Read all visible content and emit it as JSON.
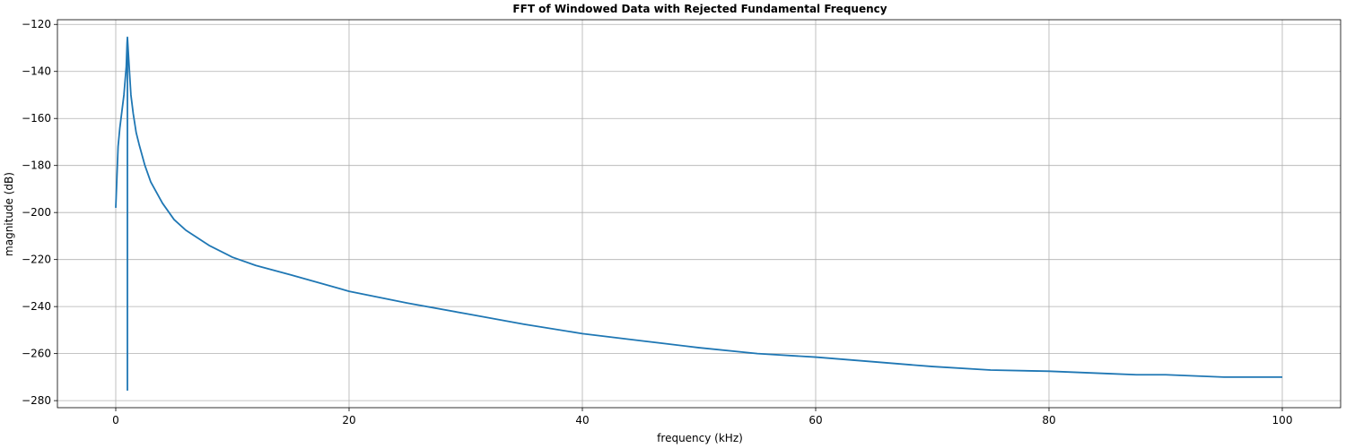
{
  "chart_data": {
    "type": "line",
    "title": "FFT of Windowed Data with Rejected Fundamental Frequency",
    "xlabel": "frequency (kHz)",
    "ylabel": "magnitude (dB)",
    "xlim": [
      -5,
      105
    ],
    "ylim": [
      -283,
      -118
    ],
    "xticks": [
      0,
      20,
      40,
      60,
      80,
      100
    ],
    "yticks": [
      -120,
      -140,
      -160,
      -180,
      -200,
      -220,
      -240,
      -260,
      -280
    ],
    "grid": true,
    "line_color": "#1f77b4",
    "series": [
      {
        "x": [
          0.0,
          0.1,
          0.2,
          0.35,
          0.5,
          0.7,
          0.9,
          0.97,
          1.0,
          1.0,
          1.0,
          1.0,
          1.03,
          1.15,
          1.3,
          1.5,
          1.75,
          2.0,
          2.5,
          3.0,
          4.0,
          5.0,
          6.0,
          8.0,
          10.0,
          12.0,
          15.0,
          20.0,
          25.0,
          30.0,
          35.0,
          40.0,
          45.0,
          50.0,
          55.0,
          60.0,
          65.0,
          70.0,
          75.0,
          80.0,
          85.0,
          87.5,
          90.0,
          95.0,
          100.0
        ],
        "y": [
          -198,
          -185,
          -172,
          -164,
          -158,
          -150,
          -138,
          -128,
          -125.5,
          -275.5,
          -275.5,
          -125.5,
          -128,
          -138,
          -150,
          -158,
          -166,
          -171,
          -180,
          -187,
          -196,
          -203,
          -207.5,
          -214,
          -219,
          -222.5,
          -226.5,
          -233.5,
          -238.5,
          -243,
          -247.5,
          -251.5,
          -254.5,
          -257.5,
          -260,
          -261.5,
          -263.5,
          -265.5,
          -267,
          -267.5,
          -268.5,
          -269,
          -269,
          -270,
          -270
        ]
      }
    ]
  }
}
